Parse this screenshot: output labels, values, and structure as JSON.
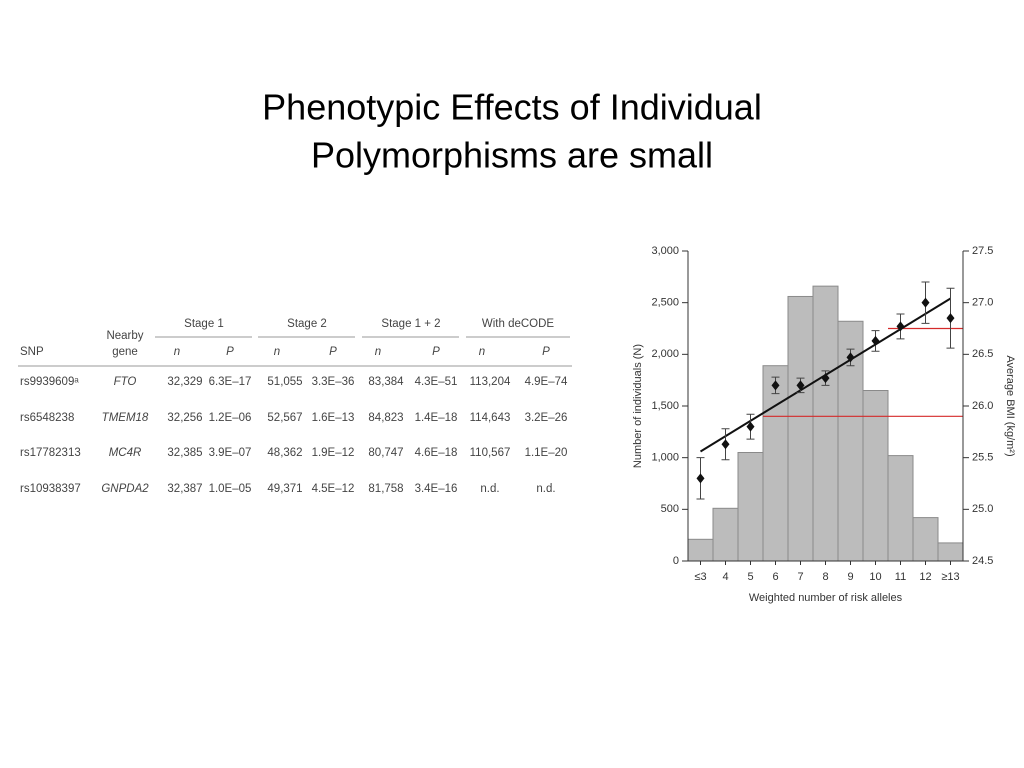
{
  "title_lines": [
    "Phenotypic Effects of Individual",
    "Polymorphisms are small"
  ],
  "table": {
    "group_headers": [
      "Stage 1",
      "Stage 2",
      "Stage 1 + 2",
      "With deCODE"
    ],
    "col_snp": "SNP",
    "col_gene": [
      "Nearby",
      "gene"
    ],
    "sub_headers": [
      "n",
      "P",
      "n",
      "P",
      "n",
      "P",
      "n",
      "P"
    ],
    "rows": [
      [
        "rs9939609ᵃ",
        "FTO",
        "32,329",
        "6.3E–17",
        "51,055",
        "3.3E–36",
        "83,384",
        "4.3E–51",
        "113,204",
        "4.9E–74"
      ],
      [
        "rs6548238",
        "TMEM18",
        "32,256",
        "1.2E–06",
        "52,567",
        "1.6E–13",
        "84,823",
        "1.4E–18",
        "114,643",
        "3.2E–26"
      ],
      [
        "rs17782313",
        "MC4R",
        "32,385",
        "3.9E–07",
        "48,362",
        "1.9E–12",
        "80,747",
        "4.6E–18",
        "110,567",
        "1.1E–20"
      ],
      [
        "rs10938397",
        "GNPDA2",
        "32,387",
        "1.0E–05",
        "49,371",
        "4.5E–12",
        "81,758",
        "3.4E–16",
        "n.d.",
        "n.d."
      ]
    ]
  },
  "chart_data": {
    "type": "bar",
    "xlabel": "Weighted number of risk alleles",
    "ylabel": "Number of individuals (N)",
    "y2label": "Average BMI (kg/m²)",
    "categories": [
      "≤3",
      "4",
      "5",
      "6",
      "7",
      "8",
      "9",
      "10",
      "11",
      "12",
      "≥13"
    ],
    "series": [
      {
        "type": "bar",
        "color": "#bcbcbc",
        "values": [
          210,
          510,
          1050,
          1890,
          2560,
          2660,
          2320,
          1650,
          1020,
          420,
          175
        ]
      },
      {
        "type": "point",
        "axis": "y2",
        "color": "#111111",
        "values": [
          25.3,
          25.63,
          25.8,
          26.2,
          26.2,
          26.27,
          26.47,
          26.63,
          26.77,
          27.0,
          26.85
        ],
        "errors": [
          0.2,
          0.15,
          0.12,
          0.08,
          0.07,
          0.07,
          0.08,
          0.1,
          0.12,
          0.2,
          0.29
        ]
      }
    ],
    "trend_line": {
      "axis": "y2",
      "color": "#111111",
      "values": [
        25.56,
        27.04
      ]
    },
    "reference_lines": [
      {
        "axis": "y2",
        "value": 25.9,
        "from": "6",
        "color": "#d42a2a"
      },
      {
        "axis": "y2",
        "value": 26.75,
        "from": "11",
        "color": "#d42a2a"
      }
    ],
    "ylim": [
      0,
      3000
    ],
    "yticks": [
      0,
      500,
      {
        "value": 1000,
        "label": "1,000"
      },
      {
        "value": 1500,
        "label": "1,500"
      },
      {
        "value": 2000,
        "label": "2,000"
      },
      {
        "value": 2500,
        "label": "2,500"
      },
      {
        "value": 3000,
        "label": "3,000"
      }
    ],
    "y2lim": [
      24.5,
      27.5
    ],
    "y2ticks": [
      24.5,
      {
        "value": 25,
        "label": "25.0"
      },
      25.5,
      {
        "value": 26,
        "label": "26.0"
      },
      26.5,
      {
        "value": 27,
        "label": "27.0"
      },
      27.5
    ]
  }
}
